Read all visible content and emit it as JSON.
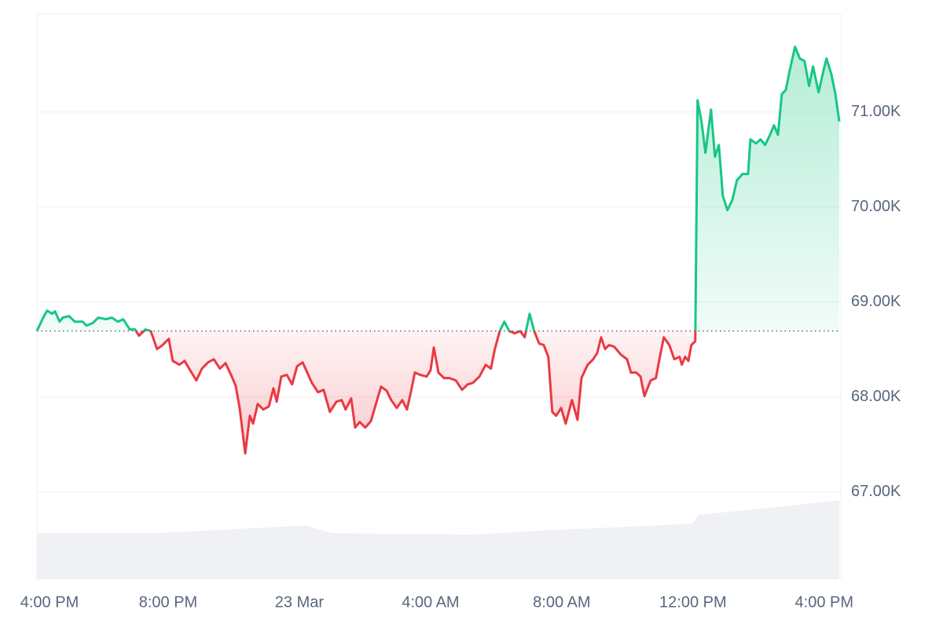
{
  "chart_data": {
    "type": "line",
    "x": [
      0,
      0.19,
      0.31,
      0.46,
      0.55,
      0.69,
      0.79,
      0.98,
      1.15,
      1.39,
      1.51,
      1.7,
      1.87,
      2.11,
      2.28,
      2.47,
      2.63,
      2.83,
      2.99,
      3.11,
      3.31,
      3.47,
      3.66,
      3.83,
      4.02,
      4.14,
      4.34,
      4.5,
      4.67,
      4.86,
      5.03,
      5.22,
      5.39,
      5.58,
      5.75,
      5.94,
      6.06,
      6.18,
      6.35,
      6.49,
      6.59,
      6.73,
      6.9,
      7.07,
      7.21,
      7.31,
      7.45,
      7.62,
      7.78,
      7.93,
      8.1,
      8.22,
      8.38,
      8.57,
      8.74,
      8.93,
      9.13,
      9.29,
      9.41,
      9.58,
      9.7,
      9.84,
      10.01,
      10.18,
      10.32,
      10.49,
      10.66,
      10.8,
      10.97,
      11.14,
      11.28,
      11.4,
      11.52,
      11.69,
      11.88,
      12.0,
      12.1,
      12.24,
      12.41,
      12.57,
      12.77,
      12.96,
      13.13,
      13.29,
      13.49,
      13.68,
      13.84,
      13.96,
      14.11,
      14.25,
      14.4,
      14.56,
      14.73,
      14.87,
      15.02,
      15.16,
      15.31,
      15.45,
      15.59,
      15.71,
      15.83,
      15.98,
      16.12,
      16.31,
      16.48,
      16.6,
      16.79,
      16.96,
      17.08,
      17.2,
      17.32,
      17.44,
      17.6,
      17.8,
      17.99,
      18.11,
      18.27,
      18.4,
      18.52,
      18.71,
      18.87,
      18.99,
      19.11,
      19.28,
      19.43,
      19.59,
      19.66,
      19.76,
      19.86,
      19.95,
      20.07,
      20.14,
      20.26,
      20.38,
      20.55,
      20.67,
      20.79,
      20.91,
      21.05,
      21.2,
      21.34,
      21.51,
      21.68,
      21.75,
      21.92,
      22.06,
      22.2,
      22.35,
      22.47,
      22.59,
      22.71,
      22.83,
      22.95,
      23.11,
      23.26,
      23.4,
      23.54,
      23.66,
      23.83,
      23.98,
      24.07,
      24.22,
      24.34,
      24.46
    ],
    "values": [
      68694,
      68835,
      68909,
      68876,
      68901,
      68793,
      68835,
      68851,
      68793,
      68793,
      68752,
      68777,
      68835,
      68818,
      68835,
      68793,
      68818,
      68711,
      68711,
      68645,
      68711,
      68694,
      68504,
      68546,
      68612,
      68380,
      68339,
      68380,
      68281,
      68174,
      68298,
      68364,
      68397,
      68298,
      68356,
      68215,
      68116,
      67884,
      67405,
      67802,
      67719,
      67926,
      67868,
      67901,
      68091,
      67950,
      68215,
      68232,
      68132,
      68322,
      68364,
      68273,
      68149,
      68050,
      68075,
      67843,
      67950,
      67967,
      67868,
      67984,
      67678,
      67736,
      67678,
      67744,
      67909,
      68108,
      68066,
      67967,
      67884,
      67967,
      67868,
      68050,
      68256,
      68232,
      68215,
      68281,
      68521,
      68256,
      68199,
      68199,
      68174,
      68075,
      68132,
      68149,
      68215,
      68339,
      68298,
      68504,
      68694,
      68793,
      68694,
      68670,
      68694,
      68628,
      68876,
      68694,
      68562,
      68546,
      68422,
      67843,
      67802,
      67884,
      67719,
      67967,
      67760,
      68199,
      68339,
      68397,
      68463,
      68628,
      68504,
      68546,
      68529,
      68446,
      68397,
      68256,
      68256,
      68215,
      68008,
      68174,
      68199,
      68422,
      68628,
      68546,
      68397,
      68422,
      68339,
      68422,
      68380,
      68546,
      68587,
      71124,
      70901,
      70570,
      71025,
      70529,
      70653,
      70116,
      69967,
      70074,
      70281,
      70347,
      70347,
      70711,
      70669,
      70711,
      70653,
      70760,
      70860,
      70760,
      71190,
      71231,
      71438,
      71686,
      71562,
      71537,
      71273,
      71479,
      71207,
      71438,
      71562,
      71397,
      71190,
      70901
    ],
    "baseline": 68694,
    "up_color": "#16c784",
    "down_color": "#ea3943",
    "volume": {
      "color": "#eff1f4",
      "x": [
        0,
        3.66,
        8.22,
        9.0,
        13.29,
        15.69,
        19.95,
        20.2,
        22.83,
        24.3,
        24.46
      ],
      "values": [
        60,
        60,
        70,
        60,
        58,
        64,
        72,
        84,
        95,
        102,
        102
      ]
    },
    "xlim": [
      0,
      24.46
    ],
    "xticks": [
      {
        "value": 0,
        "label": "4:00 PM"
      },
      {
        "value": 4,
        "label": "8:00 PM"
      },
      {
        "value": 8,
        "label": "23 Mar"
      },
      {
        "value": 12,
        "label": "4:00 AM"
      },
      {
        "value": 16,
        "label": "8:00 AM"
      },
      {
        "value": 20,
        "label": "12:00 PM"
      },
      {
        "value": 24,
        "label": "4:00 PM"
      }
    ],
    "ylim": [
      66080,
      72030
    ],
    "yticks": [
      {
        "value": 67000,
        "label": "67.00K"
      },
      {
        "value": 68000,
        "label": "68.00K"
      },
      {
        "value": 69000,
        "label": "69.00K"
      },
      {
        "value": 70000,
        "label": "70.00K"
      },
      {
        "value": 71000,
        "label": "71.00K"
      }
    ],
    "grid": true
  }
}
